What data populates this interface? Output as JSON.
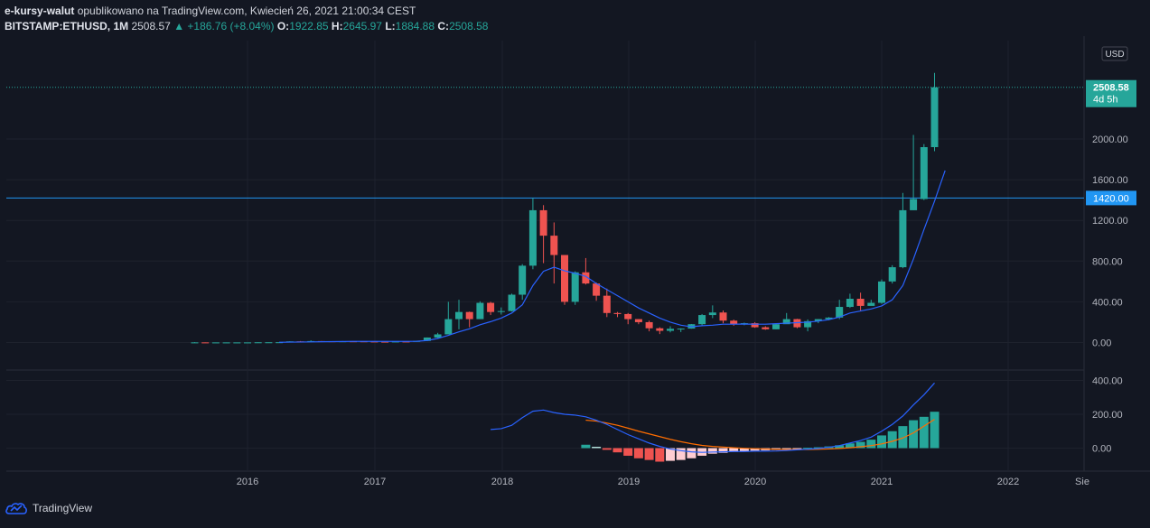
{
  "header": {
    "author": "e-kursy-walut",
    "published": "opublikowano na TradingView.com, Kwiecień 26, 2021 21:00:34 CEST",
    "symbol": "BITSTAMP:ETHUSD, 1M",
    "last": "2508.57",
    "change": "+186.76 (+8.04%)",
    "o_label": "O:",
    "o": "1922.85",
    "h_label": "H:",
    "h": "2645.97",
    "l_label": "L:",
    "l": "1884.88",
    "c_label": "C:",
    "c": "2508.58"
  },
  "price_badge": {
    "value": "2508.58",
    "countdown": "4d 5h"
  },
  "level_badge": "1420.00",
  "currency": "USD",
  "footer": {
    "brand": "TradingView"
  },
  "colors": {
    "bg": "#131722",
    "up": "#26a69a",
    "down": "#ef5350",
    "ma": "#2962ff",
    "signal": "#ff6d00",
    "level": "#2196f3"
  },
  "chart_data": [
    {
      "type": "candlestick",
      "interval": "1M",
      "ylim": [
        -80,
        2650
      ],
      "yticks": [
        "0.00",
        "400.00",
        "800.00",
        "1200.00",
        "1600.00",
        "2000.00"
      ],
      "xticks": [
        "2016",
        "2017",
        "2018",
        "2019",
        "2020",
        "2021",
        "2022",
        "Sie"
      ],
      "horizontal_level": 1420,
      "candles": [
        [
          0.7,
          3,
          0.4,
          1.2
        ],
        [
          1.2,
          1.5,
          0.6,
          0.9
        ],
        [
          0.9,
          1.2,
          0.8,
          0.9
        ],
        [
          0.9,
          1.1,
          0.6,
          0.9
        ],
        [
          0.9,
          1.0,
          0.8,
          0.9
        ],
        [
          0.9,
          1.0,
          0.8,
          0.9
        ],
        [
          0.9,
          2.7,
          0.9,
          2.2
        ],
        [
          2.2,
          2.6,
          1.9,
          2.4
        ],
        [
          2.4,
          3.0,
          2.2,
          2.8
        ],
        [
          2.8,
          12,
          2.7,
          11.3
        ],
        [
          11.3,
          14.9,
          7.6,
          8.4
        ],
        [
          8.4,
          21.5,
          8,
          14.1
        ],
        [
          14.1,
          14.9,
          12.4,
          12.5
        ],
        [
          12.5,
          12.6,
          7.5,
          11.3
        ],
        [
          11.3,
          14.1,
          9.9,
          12.1
        ],
        [
          12.1,
          13.1,
          10.9,
          11.8
        ],
        [
          11.8,
          12,
          9.7,
          10.2
        ],
        [
          10.2,
          11,
          7.9,
          8.4
        ],
        [
          8.4,
          8.7,
          6.9,
          8.0
        ],
        [
          8.0,
          10.5,
          7.4,
          10.0
        ],
        [
          10.0,
          12.9,
          8.0,
          8.2
        ],
        [
          8.2,
          17.3,
          8.1,
          15.2
        ],
        [
          15.2,
          50,
          15,
          49
        ],
        [
          49,
          95,
          45,
          80
        ],
        [
          80,
          400,
          80,
          230
        ],
        [
          230,
          420,
          130,
          300
        ],
        [
          300,
          304,
          150,
          230
        ],
        [
          230,
          405,
          230,
          390
        ],
        [
          390,
          400,
          270,
          300
        ],
        [
          300,
          345,
          275,
          309
        ],
        [
          309,
          480,
          305,
          470
        ],
        [
          470,
          770,
          420,
          755
        ],
        [
          755,
          1420,
          720,
          1300
        ],
        [
          1300,
          1350,
          780,
          1050
        ],
        [
          1050,
          1180,
          580,
          860
        ],
        [
          860,
          860,
          370,
          400
        ],
        [
          400,
          700,
          370,
          690
        ],
        [
          690,
          830,
          570,
          580
        ],
        [
          580,
          590,
          410,
          460
        ],
        [
          460,
          530,
          250,
          290
        ],
        [
          290,
          300,
          250,
          280
        ],
        [
          280,
          290,
          180,
          230
        ],
        [
          230,
          230,
          180,
          200
        ],
        [
          200,
          215,
          110,
          140
        ],
        [
          140,
          150,
          83,
          115
        ],
        [
          115,
          160,
          100,
          135
        ],
        [
          135,
          140,
          103,
          137
        ],
        [
          137,
          182,
          136,
          180
        ],
        [
          180,
          280,
          160,
          270
        ],
        [
          270,
          365,
          240,
          295
        ],
        [
          295,
          315,
          190,
          215
        ],
        [
          215,
          225,
          165,
          180
        ],
        [
          180,
          196,
          170,
          190
        ],
        [
          190,
          200,
          145,
          150
        ],
        [
          150,
          160,
          125,
          130
        ],
        [
          130,
          185,
          130,
          180
        ],
        [
          180,
          290,
          200,
          230
        ],
        [
          230,
          233,
          140,
          150
        ],
        [
          150,
          227,
          110,
          210
        ],
        [
          210,
          230,
          190,
          230
        ],
        [
          230,
          250,
          220,
          245
        ],
        [
          245,
          420,
          230,
          350
        ],
        [
          350,
          480,
          340,
          430
        ],
        [
          430,
          490,
          310,
          360
        ],
        [
          360,
          420,
          370,
          390
        ],
        [
          390,
          620,
          380,
          600
        ],
        [
          600,
          760,
          580,
          740
        ],
        [
          740,
          1470,
          730,
          1300
        ],
        [
          1300,
          2040,
          1300,
          1410
        ],
        [
          1410,
          1950,
          1400,
          1920
        ],
        [
          1920,
          2650,
          1880,
          2508
        ]
      ],
      "moving_average": [
        [
          8,
          2.2
        ],
        [
          9,
          4
        ],
        [
          10,
          5
        ],
        [
          11,
          6
        ],
        [
          12,
          8
        ],
        [
          13,
          9
        ],
        [
          14,
          10
        ],
        [
          15,
          11
        ],
        [
          16,
          11
        ],
        [
          17,
          11
        ],
        [
          18,
          11
        ],
        [
          19,
          11
        ],
        [
          20,
          11
        ],
        [
          21,
          12
        ],
        [
          22,
          20
        ],
        [
          23,
          40
        ],
        [
          24,
          70
        ],
        [
          25,
          105
        ],
        [
          26,
          135
        ],
        [
          27,
          175
        ],
        [
          28,
          205
        ],
        [
          29,
          240
        ],
        [
          30,
          290
        ],
        [
          31,
          370
        ],
        [
          32,
          560
        ],
        [
          33,
          700
        ],
        [
          34,
          740
        ],
        [
          35,
          705
        ],
        [
          36,
          680
        ],
        [
          37,
          650
        ],
        [
          38,
          580
        ],
        [
          39,
          520
        ],
        [
          40,
          460
        ],
        [
          41,
          400
        ],
        [
          42,
          340
        ],
        [
          43,
          290
        ],
        [
          44,
          240
        ],
        [
          45,
          200
        ],
        [
          46,
          170
        ],
        [
          47,
          155
        ],
        [
          48,
          165
        ],
        [
          49,
          170
        ],
        [
          50,
          180
        ],
        [
          51,
          180
        ],
        [
          52,
          182
        ],
        [
          53,
          180
        ],
        [
          54,
          180
        ],
        [
          55,
          185
        ],
        [
          56,
          190
        ],
        [
          57,
          195
        ],
        [
          58,
          200
        ],
        [
          59,
          210
        ],
        [
          60,
          225
        ],
        [
          61,
          250
        ],
        [
          62,
          290
        ],
        [
          63,
          310
        ],
        [
          64,
          330
        ],
        [
          65,
          360
        ],
        [
          66,
          420
        ],
        [
          67,
          560
        ],
        [
          68,
          820
        ],
        [
          69,
          1110
        ],
        [
          70,
          1390
        ],
        [
          71,
          1690
        ]
      ]
    },
    {
      "type": "macd",
      "ylim": [
        -110,
        420
      ],
      "yticks": [
        "0.00",
        "200.00",
        "400.00"
      ],
      "macd_line": [
        [
          28,
          110
        ],
        [
          29,
          115
        ],
        [
          30,
          135
        ],
        [
          31,
          180
        ],
        [
          32,
          218
        ],
        [
          33,
          225
        ],
        [
          34,
          210
        ],
        [
          35,
          200
        ],
        [
          36,
          195
        ],
        [
          37,
          185
        ],
        [
          38,
          165
        ],
        [
          39,
          140
        ],
        [
          40,
          110
        ],
        [
          41,
          80
        ],
        [
          42,
          55
        ],
        [
          43,
          30
        ],
        [
          44,
          10
        ],
        [
          45,
          -5
        ],
        [
          46,
          -15
        ],
        [
          47,
          -22
        ],
        [
          48,
          -25
        ],
        [
          49,
          -23
        ],
        [
          50,
          -22
        ],
        [
          51,
          -20
        ],
        [
          52,
          -20
        ],
        [
          53,
          -18
        ],
        [
          54,
          -18
        ],
        [
          55,
          -17
        ],
        [
          56,
          -14
        ],
        [
          57,
          -10
        ],
        [
          58,
          -6
        ],
        [
          59,
          -2
        ],
        [
          60,
          5
        ],
        [
          61,
          15
        ],
        [
          62,
          30
        ],
        [
          63,
          45
        ],
        [
          64,
          65
        ],
        [
          65,
          100
        ],
        [
          66,
          140
        ],
        [
          67,
          190
        ],
        [
          68,
          255
        ],
        [
          69,
          315
        ],
        [
          70,
          385
        ]
      ],
      "signal_line": [
        [
          37,
          165
        ],
        [
          38,
          160
        ],
        [
          39,
          148
        ],
        [
          40,
          135
        ],
        [
          41,
          118
        ],
        [
          42,
          100
        ],
        [
          43,
          84
        ],
        [
          44,
          68
        ],
        [
          45,
          52
        ],
        [
          46,
          38
        ],
        [
          47,
          26
        ],
        [
          48,
          16
        ],
        [
          49,
          10
        ],
        [
          50,
          6
        ],
        [
          51,
          2
        ],
        [
          52,
          -1
        ],
        [
          53,
          -3
        ],
        [
          54,
          -5
        ],
        [
          55,
          -7
        ],
        [
          56,
          -8
        ],
        [
          57,
          -8
        ],
        [
          58,
          -8
        ],
        [
          59,
          -7
        ],
        [
          60,
          -5
        ],
        [
          61,
          -2
        ],
        [
          62,
          2
        ],
        [
          63,
          8
        ],
        [
          64,
          15
        ],
        [
          65,
          25
        ],
        [
          66,
          40
        ],
        [
          67,
          60
        ],
        [
          68,
          90
        ],
        [
          69,
          130
        ],
        [
          70,
          170
        ]
      ],
      "histogram": [
        [
          37,
          20
        ],
        [
          38,
          8
        ],
        [
          39,
          -10
        ],
        [
          40,
          -25
        ],
        [
          41,
          -45
        ],
        [
          42,
          -60
        ],
        [
          43,
          -70
        ],
        [
          44,
          -80
        ],
        [
          45,
          -75
        ],
        [
          46,
          -70
        ],
        [
          47,
          -60
        ],
        [
          48,
          -45
        ],
        [
          49,
          -33
        ],
        [
          50,
          -28
        ],
        [
          51,
          -22
        ],
        [
          52,
          -19
        ],
        [
          53,
          -15
        ],
        [
          54,
          -13
        ],
        [
          55,
          -10
        ],
        [
          56,
          -6
        ],
        [
          57,
          -2
        ],
        [
          58,
          2
        ],
        [
          59,
          5
        ],
        [
          60,
          10
        ],
        [
          61,
          17
        ],
        [
          62,
          28
        ],
        [
          63,
          37
        ],
        [
          64,
          50
        ],
        [
          65,
          75
        ],
        [
          66,
          100
        ],
        [
          67,
          130
        ],
        [
          68,
          165
        ],
        [
          69,
          185
        ],
        [
          70,
          215
        ]
      ]
    }
  ]
}
